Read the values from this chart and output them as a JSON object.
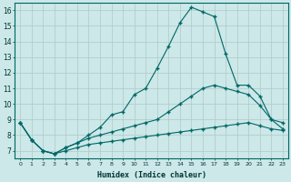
{
  "background_color": "#cce8e8",
  "grid_color": "#b0c8c8",
  "line_color": "#006666",
  "xlabel": "Humidex (Indice chaleur)",
  "xlim": [
    -0.5,
    23.5
  ],
  "ylim": [
    6.5,
    16.5
  ],
  "xticks": [
    0,
    1,
    2,
    3,
    4,
    5,
    6,
    7,
    8,
    9,
    10,
    11,
    12,
    13,
    14,
    15,
    16,
    17,
    18,
    19,
    20,
    21,
    22,
    23
  ],
  "yticks": [
    7,
    8,
    9,
    10,
    11,
    12,
    13,
    14,
    15,
    16
  ],
  "line1_x": [
    0,
    1,
    2,
    3,
    4,
    5,
    6,
    7,
    8,
    9,
    10,
    11,
    12,
    13,
    14,
    15,
    16,
    17,
    18,
    19,
    20,
    21,
    22,
    23
  ],
  "line1_y": [
    8.8,
    7.7,
    7.0,
    6.8,
    7.2,
    7.5,
    8.0,
    8.5,
    9.3,
    9.5,
    10.6,
    11.0,
    12.3,
    13.7,
    15.2,
    16.2,
    15.9,
    15.6,
    13.2,
    11.2,
    11.2,
    10.5,
    9.0,
    8.4
  ],
  "line2_x": [
    0,
    1,
    2,
    3,
    4,
    5,
    6,
    7,
    8,
    9,
    10,
    11,
    12,
    13,
    14,
    15,
    16,
    17,
    18,
    19,
    20,
    21,
    22,
    23
  ],
  "line2_y": [
    8.8,
    7.7,
    7.0,
    6.8,
    7.2,
    7.5,
    7.8,
    8.0,
    8.2,
    8.4,
    8.6,
    8.8,
    9.0,
    9.5,
    10.0,
    10.5,
    11.0,
    11.2,
    11.0,
    10.8,
    10.6,
    9.9,
    9.0,
    8.8
  ],
  "line3_x": [
    0,
    1,
    2,
    3,
    4,
    5,
    6,
    7,
    8,
    9,
    10,
    11,
    12,
    13,
    14,
    15,
    16,
    17,
    18,
    19,
    20,
    21,
    22,
    23
  ],
  "line3_y": [
    8.8,
    7.7,
    7.0,
    6.8,
    7.0,
    7.2,
    7.4,
    7.5,
    7.6,
    7.7,
    7.8,
    7.9,
    8.0,
    8.1,
    8.2,
    8.3,
    8.4,
    8.5,
    8.6,
    8.7,
    8.8,
    8.6,
    8.4,
    8.3
  ]
}
